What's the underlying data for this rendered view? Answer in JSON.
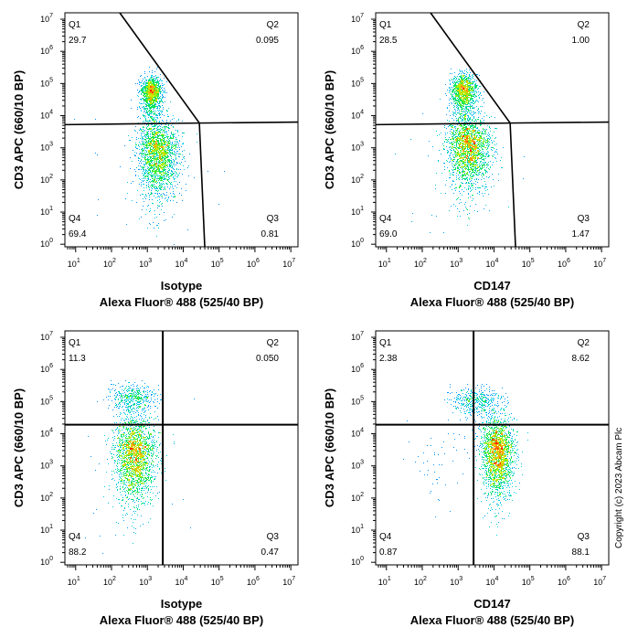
{
  "copyright": "Copyright (c) 2023 Abcam Plc",
  "colors": {
    "low": "#0000ff",
    "mid": "#00ff40",
    "high": "#ff2000",
    "gate": "#000000"
  },
  "chart_data": [
    {
      "type": "scatter",
      "subtype": "flow-cytometry-density",
      "xlabel": "Isotype",
      "xlabel2": "Alexa Fluor® 488  (525/40 BP)",
      "ylabel": "CD3 APC (660/10 BP)",
      "x_scale": "log",
      "y_scale": "log",
      "xlim_log10": [
        0.7,
        7.2
      ],
      "ylim_log10": [
        -0.08,
        7.2
      ],
      "x_ticks_exp": [
        1,
        2,
        3,
        4,
        5,
        6,
        7
      ],
      "y_ticks_exp": [
        0,
        1,
        2,
        3,
        4,
        5,
        6,
        7
      ],
      "quadrants": {
        "Q1": "29.7",
        "Q2": "0.095",
        "Q3": "0.81",
        "Q4": "69.4"
      },
      "gate": {
        "type": "angled",
        "horizontal_log10": [
          3.72,
          3.8
        ],
        "diagonal_top_x_log10": 2.23,
        "vertex": [
          4.45,
          3.77
        ],
        "vertical_bottom_x_log10": 4.6
      },
      "populations": [
        {
          "x": 3.1,
          "y": 4.7,
          "sx": 0.14,
          "sy": 0.25,
          "weight": 0.3
        },
        {
          "x": 3.3,
          "y": 2.8,
          "sx": 0.28,
          "sy": 0.5,
          "weight": 0.69
        },
        {
          "x": 3.0,
          "y": 2.0,
          "sx": 0.9,
          "sy": 1.3,
          "weight": 0.01
        }
      ]
    },
    {
      "type": "scatter",
      "subtype": "flow-cytometry-density",
      "xlabel": "CD147",
      "xlabel2": "Alexa Fluor® 488  (525/40 BP)",
      "ylabel": "CD3 APC (660/10 BP)",
      "x_scale": "log",
      "y_scale": "log",
      "xlim_log10": [
        0.7,
        7.2
      ],
      "ylim_log10": [
        -0.08,
        7.2
      ],
      "x_ticks_exp": [
        1,
        2,
        3,
        4,
        5,
        6,
        7
      ],
      "y_ticks_exp": [
        0,
        1,
        2,
        3,
        4,
        5,
        6,
        7
      ],
      "quadrants": {
        "Q1": "28.5",
        "Q2": "1.00",
        "Q3": "1.47",
        "Q4": "69.0"
      },
      "gate": {
        "type": "angled",
        "horizontal_log10": [
          3.72,
          3.8
        ],
        "diagonal_top_x_log10": 2.23,
        "vertex": [
          4.45,
          3.77
        ],
        "vertical_bottom_x_log10": 4.6
      },
      "populations": [
        {
          "x": 3.15,
          "y": 4.75,
          "sx": 0.18,
          "sy": 0.25,
          "weight": 0.29
        },
        {
          "x": 3.3,
          "y": 3.0,
          "sx": 0.3,
          "sy": 0.45,
          "weight": 0.7
        },
        {
          "x": 3.0,
          "y": 2.0,
          "sx": 0.9,
          "sy": 1.3,
          "weight": 0.01
        }
      ]
    },
    {
      "type": "scatter",
      "subtype": "flow-cytometry-density",
      "xlabel": "Isotype",
      "xlabel2": "Alexa Fluor® 488  (525/40 BP)",
      "ylabel": "CD3 APC (660/10 BP)",
      "x_scale": "log",
      "y_scale": "log",
      "xlim_log10": [
        0.7,
        7.2
      ],
      "ylim_log10": [
        -0.08,
        7.2
      ],
      "x_ticks_exp": [
        1,
        2,
        3,
        4,
        5,
        6,
        7
      ],
      "y_ticks_exp": [
        0,
        1,
        2,
        3,
        4,
        5,
        6,
        7
      ],
      "quadrants": {
        "Q1": "11.3",
        "Q2": "0.050",
        "Q3": "0.47",
        "Q4": "88.2"
      },
      "gate": {
        "type": "quadrant",
        "x_log10": 3.43,
        "y_log10": 4.28
      },
      "populations": [
        {
          "x": 2.6,
          "y": 5.1,
          "sx": 0.3,
          "sy": 0.2,
          "weight": 0.11
        },
        {
          "x": 2.65,
          "y": 3.3,
          "sx": 0.28,
          "sy": 0.55,
          "weight": 0.88
        },
        {
          "x": 2.4,
          "y": 3.0,
          "sx": 0.8,
          "sy": 1.0,
          "weight": 0.01
        }
      ]
    },
    {
      "type": "scatter",
      "subtype": "flow-cytometry-density",
      "xlabel": "CD147",
      "xlabel2": "Alexa Fluor® 488  (525/40 BP)",
      "ylabel": "CD3 APC (660/10 BP)",
      "x_scale": "log",
      "y_scale": "log",
      "xlim_log10": [
        0.7,
        7.2
      ],
      "ylim_log10": [
        -0.08,
        7.2
      ],
      "x_ticks_exp": [
        1,
        2,
        3,
        4,
        5,
        6,
        7
      ],
      "y_ticks_exp": [
        0,
        1,
        2,
        3,
        4,
        5,
        6,
        7
      ],
      "quadrants": {
        "Q1": "2.38",
        "Q2": "8.62",
        "Q3": "88.1",
        "Q4": "0.87"
      },
      "gate": {
        "type": "quadrant",
        "x_log10": 3.43,
        "y_log10": 4.28
      },
      "populations": [
        {
          "x": 3.5,
          "y": 5.0,
          "sx": 0.35,
          "sy": 0.2,
          "weight": 0.11
        },
        {
          "x": 4.1,
          "y": 3.4,
          "sx": 0.22,
          "sy": 0.5,
          "weight": 0.88
        },
        {
          "x": 2.4,
          "y": 3.0,
          "sx": 0.4,
          "sy": 0.5,
          "weight": 0.01
        }
      ]
    }
  ]
}
